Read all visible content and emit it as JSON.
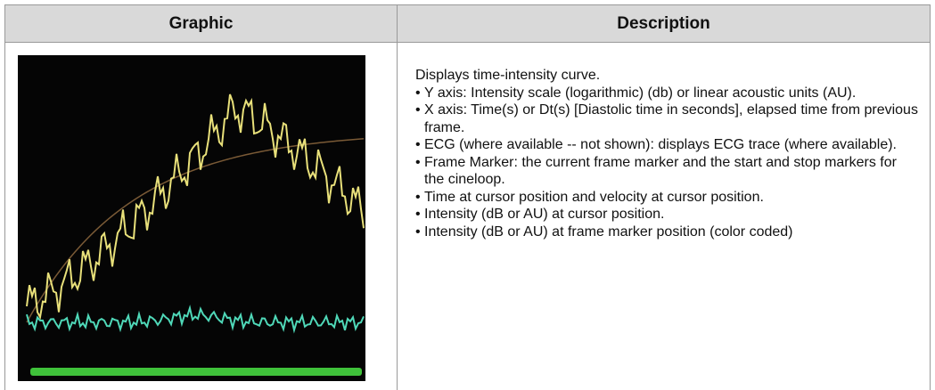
{
  "table": {
    "header": [
      "Graphic",
      "Description"
    ],
    "description": {
      "intro": "Displays time-intensity curve.",
      "items": [
        "Y axis: Intensity scale (logarithmic) (db) or linear acoustic units (AU).",
        "X axis: Time(s) or Dt(s) [Diastolic time in seconds], elapsed time from previous frame.",
        "ECG (where available -- not shown): displays ECG trace (where available).",
        "Frame Marker: the current frame marker and the start and stop markers for the cineloop.",
        "Time at cursor position and velocity at cursor position.",
        "Intensity (dB or AU) at cursor position.",
        "Intensity (dB or AU) at frame marker position (color coded)"
      ]
    }
  }
}
